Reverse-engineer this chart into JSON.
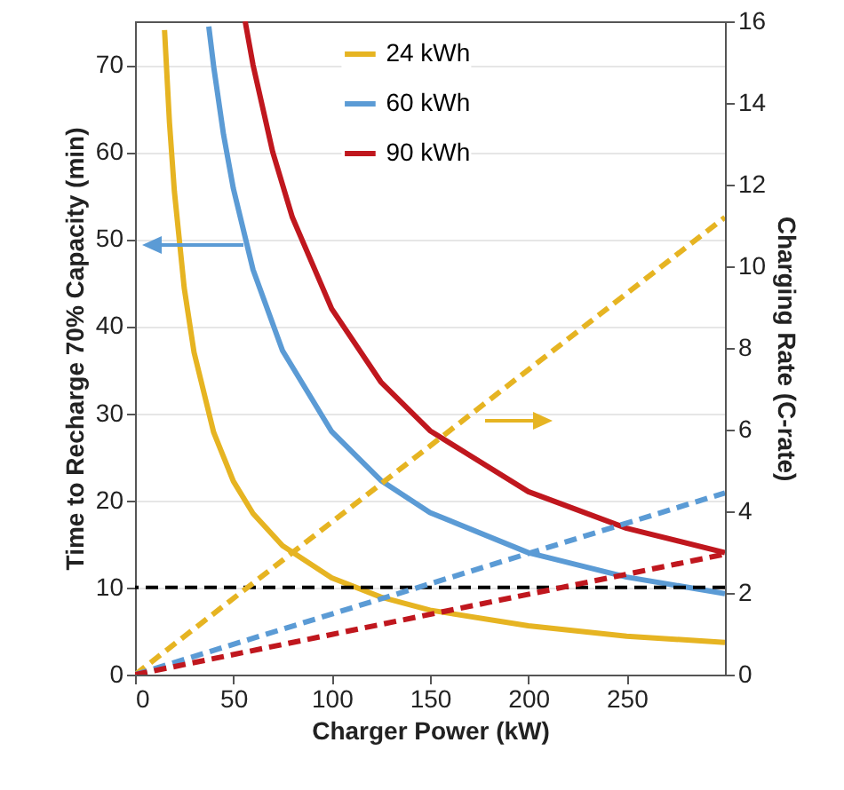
{
  "chart_data": {
    "type": "line",
    "xlabel": "Charger Power (kW)",
    "ylabel": "Time to Recharge 70% Capacity (min)",
    "y2label": "Charging Rate (C-rate)",
    "xlim": [
      0,
      300
    ],
    "xticks": [
      0,
      50,
      100,
      150,
      200,
      250
    ],
    "ylim": [
      0,
      75
    ],
    "yticks": [
      0,
      10,
      20,
      30,
      40,
      50,
      60,
      70
    ],
    "y2lim": [
      0,
      16
    ],
    "y2ticks": [
      0,
      2,
      4,
      6,
      8,
      10,
      12,
      14,
      16
    ],
    "grid": "y",
    "legend": "top",
    "line_style": "solid",
    "series": [
      {
        "name": "24 kWh",
        "color": "#e6b422",
        "x": [
          15,
          17.5,
          20,
          25,
          30,
          40,
          50,
          60,
          75,
          100,
          125,
          150,
          200,
          250,
          300
        ],
        "values": [
          74,
          63.4,
          55.5,
          44.4,
          37,
          27.8,
          22.2,
          18.5,
          14.8,
          11.1,
          8.9,
          7.4,
          5.6,
          4.4,
          3.7
        ]
      },
      {
        "name": "60 kWh",
        "color": "#5b9bd5",
        "x": [
          37.5,
          40,
          45,
          50,
          60,
          75,
          100,
          125,
          150,
          200,
          250,
          300
        ],
        "values": [
          74.4,
          69.8,
          62,
          55.8,
          46.5,
          37.2,
          27.9,
          22.3,
          18.6,
          14,
          11.2,
          9.3
        ]
      },
      {
        "name": "90 kWh",
        "color": "#c0171e",
        "x": [
          56,
          60,
          70,
          80,
          100,
          125,
          150,
          200,
          250,
          300
        ],
        "values": [
          75,
          70,
          60,
          52.5,
          42,
          33.6,
          28,
          21,
          16.8,
          14
        ]
      },
      {
        "color": "#e6b422",
        "axis": "y2",
        "line_style": "dashed",
        "x": [
          0,
          300
        ],
        "values": [
          0,
          11.2
        ]
      },
      {
        "color": "#5b9bd5",
        "axis": "y2",
        "line_style": "dashed",
        "x": [
          0,
          300
        ],
        "values": [
          0,
          4.45
        ]
      },
      {
        "color": "#c0171e",
        "axis": "y2",
        "line_style": "dashed",
        "x": [
          0,
          300
        ],
        "values": [
          0,
          2.95
        ]
      }
    ],
    "ref_lines": [
      {
        "axis": "y",
        "value": 10,
        "color": "#000000",
        "line_style": "dashed"
      }
    ]
  }
}
